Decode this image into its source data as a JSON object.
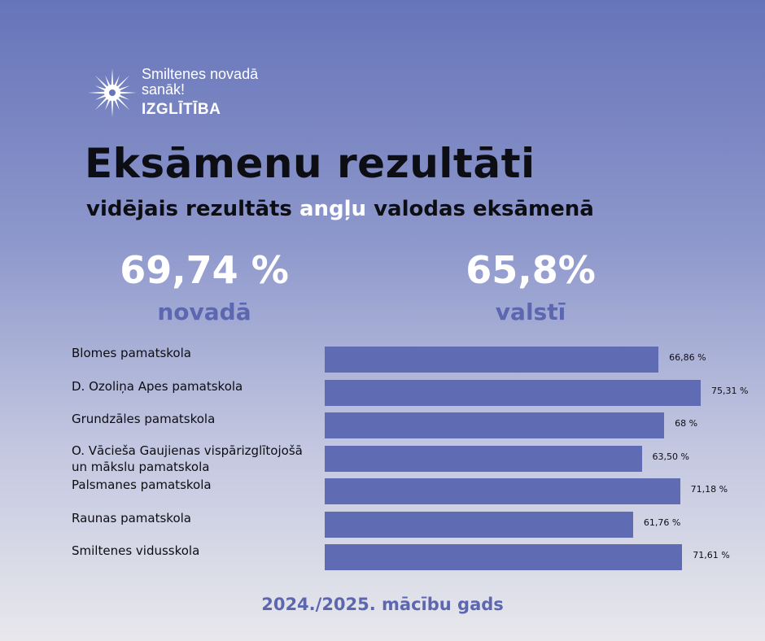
{
  "logo": {
    "line1": "Smiltenes novadā",
    "line2": "sanāk!",
    "sub": "IZGLĪTĪBA"
  },
  "title": "Eksāmenu rezultāti",
  "subtitle": {
    "pre": "vidējais rezultāts ",
    "highlight": "angļu",
    "post": " valodas eksāmenā"
  },
  "stats": {
    "left": {
      "value": "69,74 %",
      "label": "novadā"
    },
    "right": {
      "value": "65,8%",
      "label": "valstī"
    }
  },
  "chart_data": {
    "type": "bar",
    "orientation": "horizontal",
    "categories": [
      "Blomes pamatskola",
      "D. Ozoliņa Apes pamatskola",
      "Grundzāles pamatskola",
      "O. Vācieša Gaujienas vispārizglītojošā un mākslu pamatskola",
      "Palsmanes pamatskola",
      "Raunas pamatskola",
      "Smiltenes vidusskola"
    ],
    "values": [
      66.86,
      75.31,
      68,
      63.5,
      71.18,
      61.76,
      71.61
    ],
    "value_labels": [
      "66,86 %",
      "75,31 %",
      "68 %",
      "63,50 %",
      "71,18 %",
      "61,76 %",
      "71,61 %"
    ],
    "bar_color": "#5f6cb3"
  },
  "footer": "2024./2025. mācību gads",
  "colors": {
    "accent": "#5c67b0",
    "highlight": "#ffffff",
    "text": "#0d0d14"
  }
}
